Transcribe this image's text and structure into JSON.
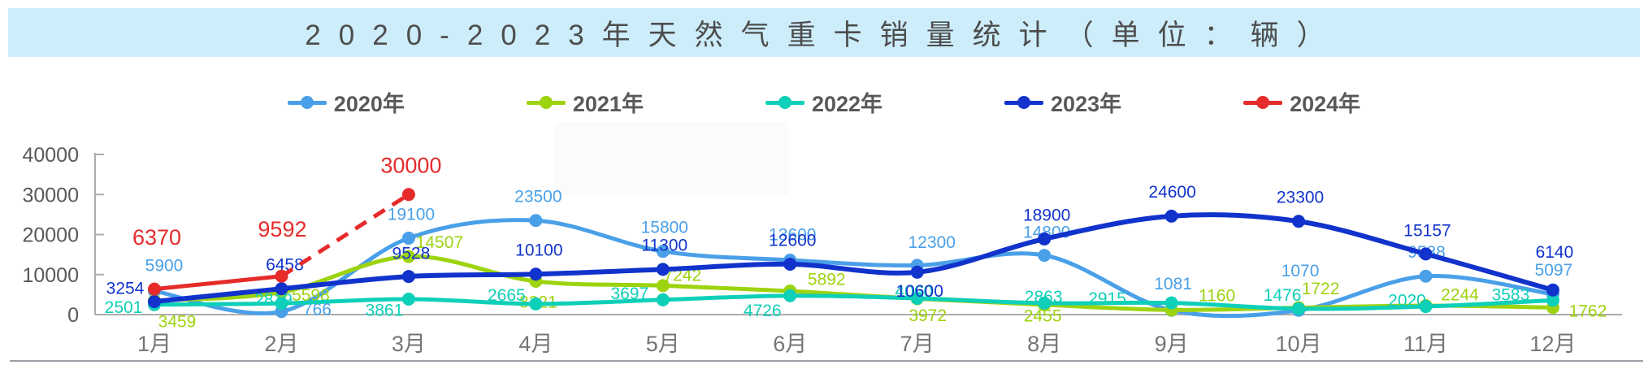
{
  "title": "2020-2023年天然气重卡销量统计（单位：辆）",
  "colors": {
    "banner_bg": "#cdedfb",
    "title_text": "#4d4d4d",
    "axis": "#adadad",
    "tick_text": "#595959",
    "month_text": "#757575",
    "legend_text": "#595959",
    "divider": "#9aa0a6"
  },
  "chart_data": {
    "type": "line",
    "title": "2020-2023年天然气重卡销量统计（单位：辆）",
    "categories": [
      "1月",
      "2月",
      "3月",
      "4月",
      "5月",
      "6月",
      "7月",
      "8月",
      "9月",
      "10月",
      "11月",
      "12月"
    ],
    "series": [
      {
        "name": "2020年",
        "color": "#4aa0e8",
        "style": "solid",
        "values": [
          5900,
          766,
          19100,
          23500,
          15800,
          13600,
          12300,
          14800,
          1081,
          1070,
          9588,
          5097
        ]
      },
      {
        "name": "2021年",
        "color": "#9dd30f",
        "style": "solid",
        "values": [
          3459,
          5598,
          14507,
          8321,
          7242,
          5892,
          3972,
          2455,
          1160,
          1722,
          2244,
          1762
        ]
      },
      {
        "name": "2022年",
        "color": "#0ecfb8",
        "style": "solid",
        "values": [
          2501,
          2819,
          3861,
          2665,
          3697,
          4726,
          4060,
          2863,
          2915,
          1476,
          2020,
          3583
        ]
      },
      {
        "name": "2023年",
        "color": "#1133cc",
        "style": "solid",
        "values": [
          3254,
          6458,
          9528,
          10100,
          11300,
          12600,
          10600,
          18900,
          24600,
          23300,
          15157,
          6140
        ]
      },
      {
        "name": "2024年",
        "color": "#e62b2b",
        "style": "dashed-projection",
        "values": [
          6370,
          9592,
          30000
        ]
      }
    ],
    "ylim": [
      0,
      40000
    ],
    "yticks": [
      0,
      10000,
      20000,
      30000,
      40000
    ],
    "xlabel": "",
    "ylabel": "",
    "legend_position": "top",
    "grid": false,
    "data_labels": true
  }
}
